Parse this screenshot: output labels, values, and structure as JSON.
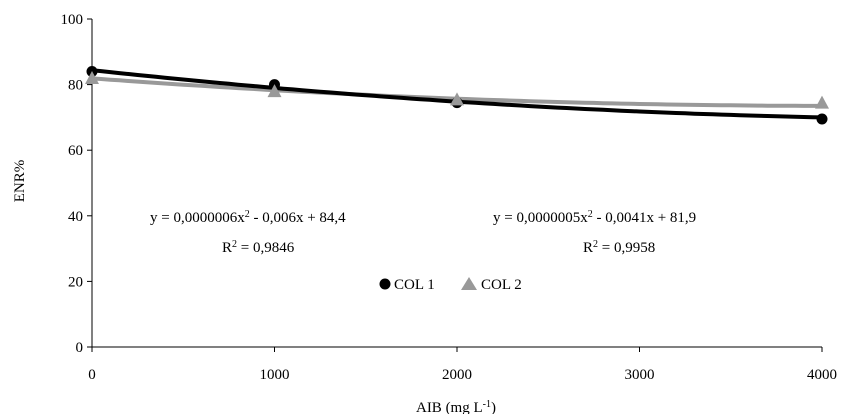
{
  "chart_data": {
    "type": "scatter",
    "xlabel": "AIB (mg L-1)",
    "ylabel": "ENR%",
    "xlim": [
      0,
      4000
    ],
    "ylim": [
      0,
      100
    ],
    "x_ticks": [
      0,
      1000,
      2000,
      3000,
      4000
    ],
    "y_ticks": [
      0,
      20,
      40,
      60,
      80,
      100
    ],
    "x_tick_labels": [
      "0",
      "1000",
      "2000",
      "3000",
      "4000"
    ],
    "y_tick_labels": [
      "0",
      "20",
      "40",
      "60",
      "80",
      "100"
    ],
    "grid": false,
    "legend": {
      "position": "center",
      "entries": [
        "COL 1",
        "COL 2"
      ]
    },
    "series": [
      {
        "name": "COL 1",
        "marker": "circle",
        "color": "#000000",
        "x": [
          0,
          1000,
          2000,
          4000
        ],
        "y": [
          84,
          80,
          74.5,
          69.5
        ],
        "trendline": {
          "a": 6e-07,
          "b": -0.006,
          "c": 84.4
        },
        "equation": "y = 0,0000006x2 - 0,006x + 84,4",
        "r2": "R2 = 0,9846"
      },
      {
        "name": "COL 2",
        "marker": "triangle",
        "color": "#999999",
        "x": [
          0,
          1000,
          2000,
          4000
        ],
        "y": [
          82,
          78,
          75.5,
          74.5
        ],
        "trendline": {
          "a": 5e-07,
          "b": -0.0041,
          "c": 81.9
        },
        "equation": "y = 0,0000005x2 - 0,0041x + 81,9",
        "r2": "R2 = 0,9958"
      }
    ]
  }
}
